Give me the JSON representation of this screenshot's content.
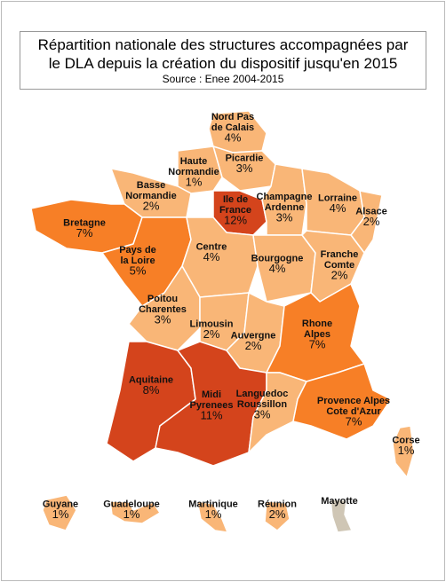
{
  "title": [
    "Répartition nationale des structures accompagnées par",
    "le DLA depuis la création du dispositif jusqu'en 2015"
  ],
  "source": "Source : Enee 2004-2015",
  "regions": [
    {
      "name": [
        "Nord Pas",
        "de Calais"
      ],
      "value": 4,
      "value_label": "4%",
      "color": "#f9b677"
    },
    {
      "name": [
        "Picardie"
      ],
      "value": 3,
      "value_label": "3%",
      "color": "#f9b677"
    },
    {
      "name": [
        "Haute",
        "Normandie"
      ],
      "value": 1,
      "value_label": "1%",
      "color": "#f9b677"
    },
    {
      "name": [
        "Basse",
        "Normandie"
      ],
      "value": 2,
      "value_label": "2%",
      "color": "#f9b677"
    },
    {
      "name": [
        "Ile de",
        "France"
      ],
      "value": 12,
      "value_label": "12%",
      "color": "#d4441c"
    },
    {
      "name": [
        "Champagne",
        "Ardenne"
      ],
      "value": 3,
      "value_label": "3%",
      "color": "#f9b677"
    },
    {
      "name": [
        "Lorraine"
      ],
      "value": 4,
      "value_label": "4%",
      "color": "#f9b677"
    },
    {
      "name": [
        "Alsace"
      ],
      "value": 2,
      "value_label": "2%",
      "color": "#f9b677"
    },
    {
      "name": [
        "Bretagne"
      ],
      "value": 7,
      "value_label": "7%",
      "color": "#f77f26"
    },
    {
      "name": [
        "Pays de",
        "la Loire"
      ],
      "value": 5,
      "value_label": "5%",
      "color": "#f77f26"
    },
    {
      "name": [
        "Centre"
      ],
      "value": 4,
      "value_label": "4%",
      "color": "#f9b677"
    },
    {
      "name": [
        "Bourgogne"
      ],
      "value": 4,
      "value_label": "4%",
      "color": "#f9b677"
    },
    {
      "name": [
        "Franche",
        "Comte"
      ],
      "value": 2,
      "value_label": "2%",
      "color": "#f9b677"
    },
    {
      "name": [
        "Poitou",
        "Charentes"
      ],
      "value": 3,
      "value_label": "3%",
      "color": "#f9b677"
    },
    {
      "name": [
        "Limousin"
      ],
      "value": 2,
      "value_label": "2%",
      "color": "#f9b677"
    },
    {
      "name": [
        "Auvergne"
      ],
      "value": 2,
      "value_label": "2%",
      "color": "#f9b677"
    },
    {
      "name": [
        "Rhone",
        "Alpes"
      ],
      "value": 7,
      "value_label": "7%",
      "color": "#f77f26"
    },
    {
      "name": [
        "Aquitaine"
      ],
      "value": 8,
      "value_label": "8%",
      "color": "#d4441c"
    },
    {
      "name": [
        "Midi",
        "Pyrenees"
      ],
      "value": 11,
      "value_label": "11%",
      "color": "#d4441c"
    },
    {
      "name": [
        "Languedoc",
        "Roussillon"
      ],
      "value": 3,
      "value_label": "3%",
      "color": "#f9b677"
    },
    {
      "name": [
        "Provence Alpes",
        "Cote d'Azur"
      ],
      "value": 7,
      "value_label": "7%",
      "color": "#f77f26"
    },
    {
      "name": [
        "Corse"
      ],
      "value": 1,
      "value_label": "1%",
      "color": "#f9b677"
    },
    {
      "name": [
        "Guyane"
      ],
      "value": 1,
      "value_label": "1%",
      "color": "#f9b677"
    },
    {
      "name": [
        "Guadeloupe"
      ],
      "value": 1,
      "value_label": "1%",
      "color": "#f9b677"
    },
    {
      "name": [
        "Martinique"
      ],
      "value": 1,
      "value_label": "1%",
      "color": "#f9b677"
    },
    {
      "name": [
        "Réunion"
      ],
      "value": 2,
      "value_label": "2%",
      "color": "#f9b677"
    },
    {
      "name": [
        "Mayotte"
      ],
      "value": null,
      "color": "#cfc6b5"
    }
  ]
}
